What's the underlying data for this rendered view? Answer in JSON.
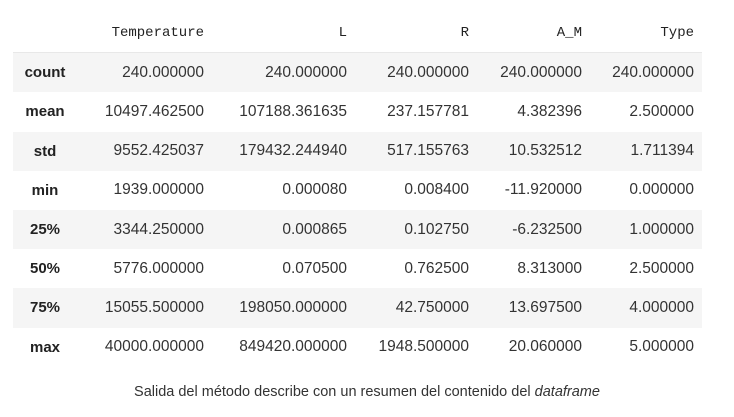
{
  "table": {
    "columns": [
      "Temperature",
      "L",
      "R",
      "A_M",
      "Type"
    ],
    "rows": [
      {
        "label": "count",
        "values": [
          "240.000000",
          "240.000000",
          "240.000000",
          "240.000000",
          "240.000000"
        ]
      },
      {
        "label": "mean",
        "values": [
          "10497.462500",
          "107188.361635",
          "237.157781",
          "4.382396",
          "2.500000"
        ]
      },
      {
        "label": "std",
        "values": [
          "9552.425037",
          "179432.244940",
          "517.155763",
          "10.532512",
          "1.711394"
        ]
      },
      {
        "label": "min",
        "values": [
          "1939.000000",
          "0.000080",
          "0.008400",
          "-11.920000",
          "0.000000"
        ]
      },
      {
        "label": "25%",
        "values": [
          "3344.250000",
          "0.000865",
          "0.102750",
          "-6.232500",
          "1.000000"
        ]
      },
      {
        "label": "50%",
        "values": [
          "5776.000000",
          "0.070500",
          "0.762500",
          "8.313000",
          "2.500000"
        ]
      },
      {
        "label": "75%",
        "values": [
          "15055.500000",
          "198050.000000",
          "42.750000",
          "13.697500",
          "4.000000"
        ]
      },
      {
        "label": "max",
        "values": [
          "40000.000000",
          "849420.000000",
          "1948.500000",
          "20.060000",
          "5.000000"
        ]
      }
    ]
  },
  "caption": {
    "text": "Salida del método describe con un resumen del contenido del ",
    "emphasis": "dataframe"
  }
}
